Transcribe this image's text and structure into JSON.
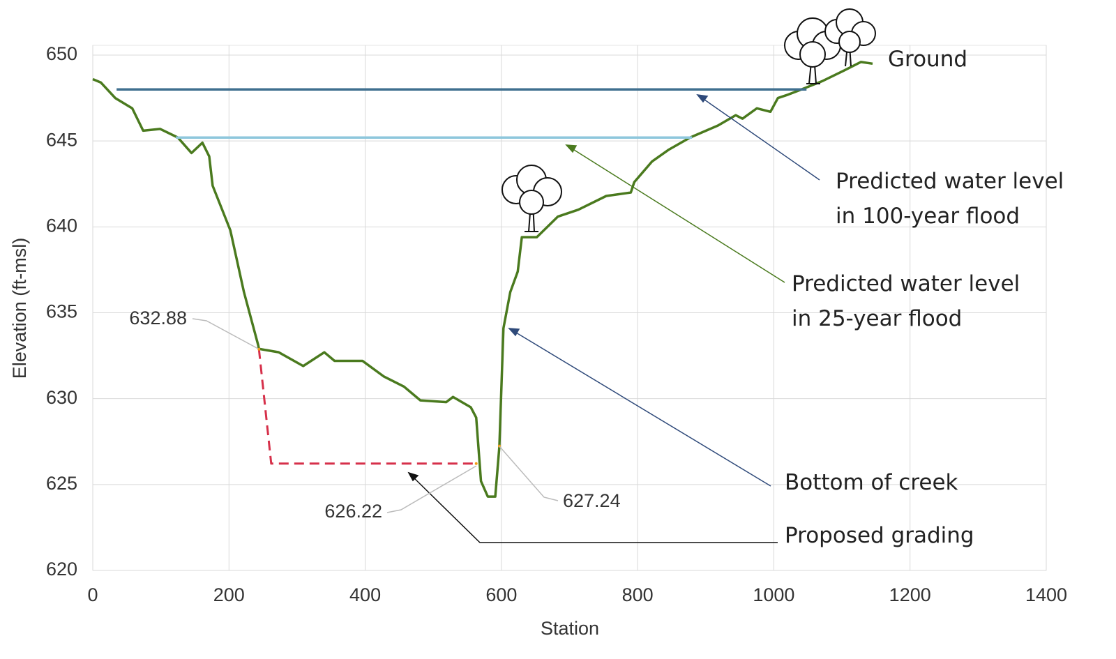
{
  "chart_data": {
    "type": "line",
    "xlabel": "Station",
    "ylabel": "Elevation (ft-msl)",
    "xlim": [
      0,
      1400
    ],
    "xticks": [
      0,
      200,
      400,
      600,
      800,
      1000,
      1200,
      1400
    ],
    "ylim": [
      620,
      650
    ],
    "yticks": [
      620,
      625,
      630,
      635,
      640,
      645,
      650
    ],
    "grid": true,
    "series": [
      {
        "name": "Ground",
        "color": "#4a7a1e",
        "dash": false,
        "x": [
          0,
          12,
          33,
          58,
          74,
          99,
          125,
          145,
          161,
          171,
          176,
          202,
          222,
          243,
          244,
          273,
          309,
          340,
          355,
          396,
          427,
          457,
          481,
          519,
          529,
          555,
          563,
          570,
          580,
          591,
          597,
          603,
          613,
          624,
          630,
          652,
          683,
          713,
          754,
          790,
          795,
          821,
          846,
          877,
          918,
          944,
          954,
          975,
          995,
          1006,
          1021,
          1047,
          1072,
          1103,
          1128,
          1145
        ],
        "values": [
          648.6,
          648.4,
          647.5,
          646.9,
          645.6,
          645.7,
          645.2,
          644.3,
          644.9,
          644.1,
          642.4,
          639.8,
          636.2,
          633.1,
          632.9,
          632.7,
          631.9,
          632.7,
          632.2,
          632.2,
          631.3,
          630.7,
          629.9,
          629.8,
          630.1,
          629.5,
          628.9,
          625.2,
          624.3,
          624.3,
          627.2,
          634.1,
          636.2,
          637.4,
          639.4,
          639.4,
          640.6,
          641.0,
          641.8,
          642.0,
          642.6,
          643.8,
          644.5,
          645.2,
          645.9,
          646.5,
          646.3,
          646.9,
          646.7,
          647.5,
          647.7,
          648.1,
          648.5,
          649.1,
          649.6,
          649.5
        ]
      },
      {
        "name": "Predicted water level in 100-year flood",
        "color": "#3f6f8f",
        "dash": false,
        "x": [
          35,
          1048
        ],
        "values": [
          648.0,
          648.0
        ]
      },
      {
        "name": "Predicted water level in 25-year flood",
        "color": "#8ec7dc",
        "dash": false,
        "x": [
          122,
          880
        ],
        "values": [
          645.2,
          645.2
        ]
      },
      {
        "name": "Proposed grading",
        "color": "#d6304a",
        "dash": true,
        "x": [
          244,
          262,
          563
        ],
        "values": [
          632.88,
          626.22,
          626.22
        ]
      }
    ],
    "callouts": [
      {
        "x": 244,
        "value": 632.88
      },
      {
        "x": 563,
        "value": 626.22
      },
      {
        "x": 597,
        "value": 627.24
      }
    ],
    "annotations": [
      "Bottom of creek"
    ]
  }
}
